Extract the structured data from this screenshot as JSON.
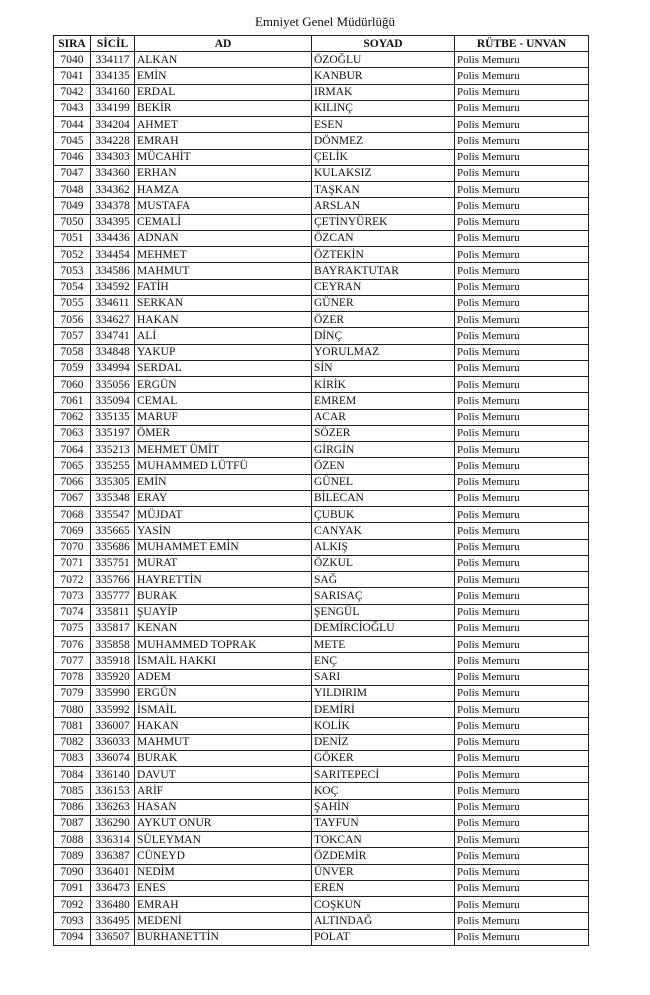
{
  "title": "Emniyet Genel Müdürlüğü",
  "table": {
    "headers": [
      "SIRA",
      "SİCİL",
      "AD",
      "SOYAD",
      "RÜTBE - UNVAN"
    ],
    "rows": [
      [
        "7040",
        "334117",
        "ALKAN",
        "ÖZOĞLU",
        "Polis Memuru"
      ],
      [
        "7041",
        "334135",
        "EMİN",
        "KANBUR",
        "Polis Memuru"
      ],
      [
        "7042",
        "334160",
        "ERDAL",
        "IRMAK",
        "Polis Memuru"
      ],
      [
        "7043",
        "334199",
        "BEKİR",
        "KILINÇ",
        "Polis Memuru"
      ],
      [
        "7044",
        "334204",
        "AHMET",
        "ESEN",
        "Polis Memuru"
      ],
      [
        "7045",
        "334228",
        "EMRAH",
        "DÖNMEZ",
        "Polis Memuru"
      ],
      [
        "7046",
        "334303",
        "MÜCAHİT",
        "ÇELİK",
        "Polis Memuru"
      ],
      [
        "7047",
        "334360",
        "ERHAN",
        "KULAKSIZ",
        "Polis Memuru"
      ],
      [
        "7048",
        "334362",
        "HAMZA",
        "TAŞKAN",
        "Polis Memuru"
      ],
      [
        "7049",
        "334378",
        "MUSTAFA",
        "ARSLAN",
        "Polis Memuru"
      ],
      [
        "7050",
        "334395",
        "CEMALİ",
        "ÇETİNYÜREK",
        "Polis Memuru"
      ],
      [
        "7051",
        "334436",
        "ADNAN",
        "ÖZCAN",
        "Polis Memuru"
      ],
      [
        "7052",
        "334454",
        "MEHMET",
        "ÖZTEKİN",
        "Polis Memuru"
      ],
      [
        "7053",
        "334586",
        "MAHMUT",
        "BAYRAKTUTAR",
        "Polis Memuru"
      ],
      [
        "7054",
        "334592",
        "FATİH",
        "CEYRAN",
        "Polis Memuru"
      ],
      [
        "7055",
        "334611",
        "SERKAN",
        "GÜNER",
        "Polis Memuru"
      ],
      [
        "7056",
        "334627",
        "HAKAN",
        "ÖZER",
        "Polis Memuru"
      ],
      [
        "7057",
        "334741",
        "ALİ",
        "DİNÇ",
        "Polis Memuru"
      ],
      [
        "7058",
        "334848",
        "YAKUP",
        "YORULMAZ",
        "Polis Memuru"
      ],
      [
        "7059",
        "334994",
        "SERDAL",
        "SİN",
        "Polis Memuru"
      ],
      [
        "7060",
        "335056",
        "ERGÜN",
        "KİRİK",
        "Polis Memuru"
      ],
      [
        "7061",
        "335094",
        "CEMAL",
        "EMREM",
        "Polis Memuru"
      ],
      [
        "7062",
        "335135",
        "MARUF",
        "ACAR",
        "Polis Memuru"
      ],
      [
        "7063",
        "335197",
        "ÖMER",
        "SÖZER",
        "Polis Memuru"
      ],
      [
        "7064",
        "335213",
        "MEHMET ÜMİT",
        "GİRGİN",
        "Polis Memuru"
      ],
      [
        "7065",
        "335255",
        "MUHAMMED LÜTFÜ",
        "ÖZEN",
        "Polis Memuru"
      ],
      [
        "7066",
        "335305",
        "EMİN",
        "GÜNEL",
        "Polis Memuru"
      ],
      [
        "7067",
        "335348",
        "ERAY",
        "BİLECAN",
        "Polis Memuru"
      ],
      [
        "7068",
        "335547",
        "MÜJDAT",
        "ÇUBUK",
        "Polis Memuru"
      ],
      [
        "7069",
        "335665",
        "YASİN",
        "CANYAK",
        "Polis Memuru"
      ],
      [
        "7070",
        "335686",
        "MUHAMMET EMİN",
        "ALKIŞ",
        "Polis Memuru"
      ],
      [
        "7071",
        "335751",
        "MURAT",
        "ÖZKUL",
        "Polis Memuru"
      ],
      [
        "7072",
        "335766",
        "HAYRETTİN",
        "SAĞ",
        "Polis Memuru"
      ],
      [
        "7073",
        "335777",
        "BURAK",
        "SARISAÇ",
        "Polis Memuru"
      ],
      [
        "7074",
        "335811",
        "ŞUAYİP",
        "ŞENGÜL",
        "Polis Memuru"
      ],
      [
        "7075",
        "335817",
        "KENAN",
        "DEMİRCİOĞLU",
        "Polis Memuru"
      ],
      [
        "7076",
        "335858",
        "MUHAMMED TOPRAK",
        "METE",
        "Polis Memuru"
      ],
      [
        "7077",
        "335918",
        "İSMAİL HAKKI",
        "ENÇ",
        "Polis Memuru"
      ],
      [
        "7078",
        "335920",
        "ADEM",
        "SARI",
        "Polis Memuru"
      ],
      [
        "7079",
        "335990",
        "ERGÜN",
        "YILDIRIM",
        "Polis Memuru"
      ],
      [
        "7080",
        "335992",
        "İSMAİL",
        "DEMİRİ",
        "Polis Memuru"
      ],
      [
        "7081",
        "336007",
        "HAKAN",
        "KOLİK",
        "Polis Memuru"
      ],
      [
        "7082",
        "336033",
        "MAHMUT",
        "DENİZ",
        "Polis Memuru"
      ],
      [
        "7083",
        "336074",
        "BURAK",
        "GÖKER",
        "Polis Memuru"
      ],
      [
        "7084",
        "336140",
        "DAVUT",
        "SARITEPECİ",
        "Polis Memuru"
      ],
      [
        "7085",
        "336153",
        "ARİF",
        "KOÇ",
        "Polis Memuru"
      ],
      [
        "7086",
        "336263",
        "HASAN",
        "ŞAHİN",
        "Polis Memuru"
      ],
      [
        "7087",
        "336290",
        "AYKUT ONUR",
        "TAYFUN",
        "Polis Memuru"
      ],
      [
        "7088",
        "336314",
        "SÜLEYMAN",
        "TOKCAN",
        "Polis Memuru"
      ],
      [
        "7089",
        "336387",
        "CÜNEYD",
        "ÖZDEMİR",
        "Polis Memuru"
      ],
      [
        "7090",
        "336401",
        "NEDİM",
        "ÜNVER",
        "Polis Memuru"
      ],
      [
        "7091",
        "336473",
        "ENES",
        "EREN",
        "Polis Memuru"
      ],
      [
        "7092",
        "336480",
        "EMRAH",
        "COŞKUN",
        "Polis Memuru"
      ],
      [
        "7093",
        "336495",
        "MEDENİ",
        "ALTINDAĞ",
        "Polis Memuru"
      ],
      [
        "7094",
        "336507",
        "BURHANETTİN",
        "POLAT",
        "Polis Memuru"
      ]
    ]
  }
}
